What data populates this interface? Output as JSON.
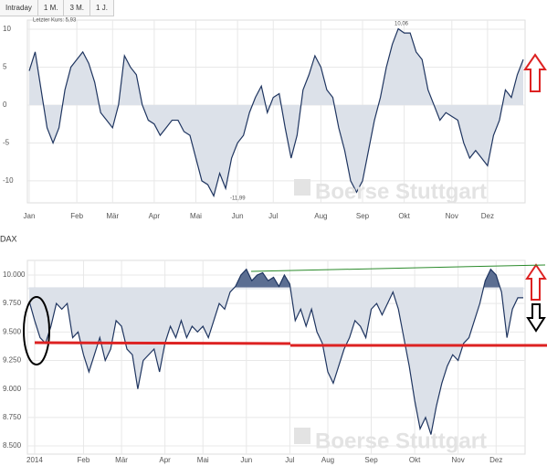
{
  "tabs": [
    "Intraday",
    "1 M.",
    "3 M.",
    "1 J."
  ],
  "chart_data": [
    {
      "type": "line",
      "last_price": "Letzter Kurs: 5,93",
      "annotations": [
        "10,06",
        "-11,99"
      ],
      "watermark": "Boerse Stuttgart",
      "color": "#1f3560",
      "fill": "#dce1e9",
      "grid": true,
      "categories": [
        "Jan",
        null,
        null,
        null,
        null,
        null,
        null,
        null,
        "Feb",
        null,
        null,
        null,
        null,
        null,
        "Mär",
        null,
        null,
        null,
        null,
        null,
        null,
        "Apr",
        null,
        null,
        null,
        null,
        null,
        null,
        "Mai",
        null,
        null,
        null,
        null,
        null,
        null,
        "Jun",
        null,
        null,
        null,
        null,
        null,
        "Jul",
        null,
        null,
        null,
        null,
        null,
        null,
        null,
        "Aug",
        null,
        null,
        null,
        null,
        null,
        null,
        "Sep",
        null,
        null,
        null,
        null,
        null,
        null,
        "Okt",
        null,
        null,
        null,
        null,
        null,
        null,
        null,
        "Nov",
        null,
        null,
        null,
        null,
        null,
        "Dez",
        null,
        null,
        null,
        null,
        null,
        null
      ],
      "values": [
        4.5,
        7,
        2,
        -3,
        -5,
        -3,
        2,
        5,
        6,
        7,
        5.5,
        3,
        -1,
        -2,
        -3,
        0,
        6.5,
        5,
        4,
        0,
        -2,
        -2.5,
        -4,
        -3,
        -2,
        -2,
        -3.5,
        -4,
        -7,
        -10,
        -10.5,
        -11.99,
        -9,
        -11,
        -7,
        -5,
        -4,
        -1,
        1,
        2.5,
        -1,
        1,
        1.5,
        -3,
        -7,
        -4,
        2,
        4,
        6.5,
        5,
        2,
        1,
        -3,
        -6,
        -10,
        -11.5,
        -10,
        -6,
        -2,
        1,
        5,
        8,
        10.06,
        9.5,
        9.5,
        7,
        6,
        2,
        0,
        -2,
        -1,
        -1.5,
        -2,
        -5,
        -7,
        -6,
        -7,
        -8,
        -4,
        -2,
        2,
        1,
        4,
        6
      ],
      "ylim": [
        -12.9,
        11.2
      ],
      "yticks": [
        10,
        5,
        0,
        -5,
        -10
      ]
    },
    {
      "type": "line",
      "title": "DAX",
      "watermark": "Boerse Stuttgart",
      "color": "#1f3560",
      "fill": "#dce1e9",
      "fill_above": "#5b6e92",
      "fill_baseline": 9890,
      "grid": true,
      "categories": [
        null,
        "2014",
        null,
        null,
        null,
        null,
        null,
        null,
        null,
        null,
        "Feb",
        null,
        null,
        null,
        null,
        null,
        null,
        "Mär",
        null,
        null,
        null,
        null,
        null,
        null,
        null,
        "Apr",
        null,
        null,
        null,
        null,
        null,
        null,
        "Mai",
        null,
        null,
        null,
        null,
        null,
        null,
        null,
        "Jun",
        null,
        null,
        null,
        null,
        null,
        null,
        null,
        "Jul",
        null,
        null,
        null,
        null,
        null,
        null,
        "Aug",
        null,
        null,
        null,
        null,
        null,
        null,
        null,
        "Sep",
        null,
        null,
        null,
        null,
        null,
        null,
        null,
        "Okt",
        null,
        null,
        null,
        null,
        null,
        null,
        null,
        "Nov",
        null,
        null,
        null,
        null,
        null,
        null,
        "Dez",
        null,
        null,
        null,
        null,
        null
      ],
      "values": [
        9770,
        9600,
        9450,
        9400,
        9550,
        9750,
        9700,
        9750,
        9450,
        9500,
        9300,
        9150,
        9300,
        9450,
        9250,
        9350,
        9600,
        9550,
        9350,
        9300,
        9000,
        9250,
        9300,
        9350,
        9150,
        9400,
        9550,
        9450,
        9600,
        9450,
        9550,
        9500,
        9550,
        9450,
        9600,
        9750,
        9700,
        9850,
        9900,
        10000,
        10050,
        9950,
        10000,
        10020,
        9950,
        9980,
        9900,
        10000,
        9920,
        9600,
        9700,
        9550,
        9700,
        9500,
        9400,
        9150,
        9050,
        9200,
        9350,
        9450,
        9600,
        9550,
        9450,
        9700,
        9750,
        9650,
        9750,
        9850,
        9700,
        9450,
        9200,
        8900,
        8650,
        8750,
        8600,
        8850,
        9050,
        9200,
        9300,
        9250,
        9400,
        9450,
        9600,
        9750,
        9950,
        10050,
        10000,
        9850,
        9450,
        9700,
        9800,
        9800
      ],
      "ylim": [
        8428,
        10128
      ],
      "yticks": [
        {
          "value": 10000,
          "label": "10.000"
        },
        {
          "value": 9750,
          "label": "9.750"
        },
        {
          "value": 9500,
          "label": "9.500"
        },
        {
          "value": 9250,
          "label": "9.250"
        },
        {
          "value": 9000,
          "label": "9.000"
        },
        {
          "value": 8750,
          "label": "8.750"
        },
        {
          "value": 8500,
          "label": "8.500"
        }
      ]
    }
  ]
}
